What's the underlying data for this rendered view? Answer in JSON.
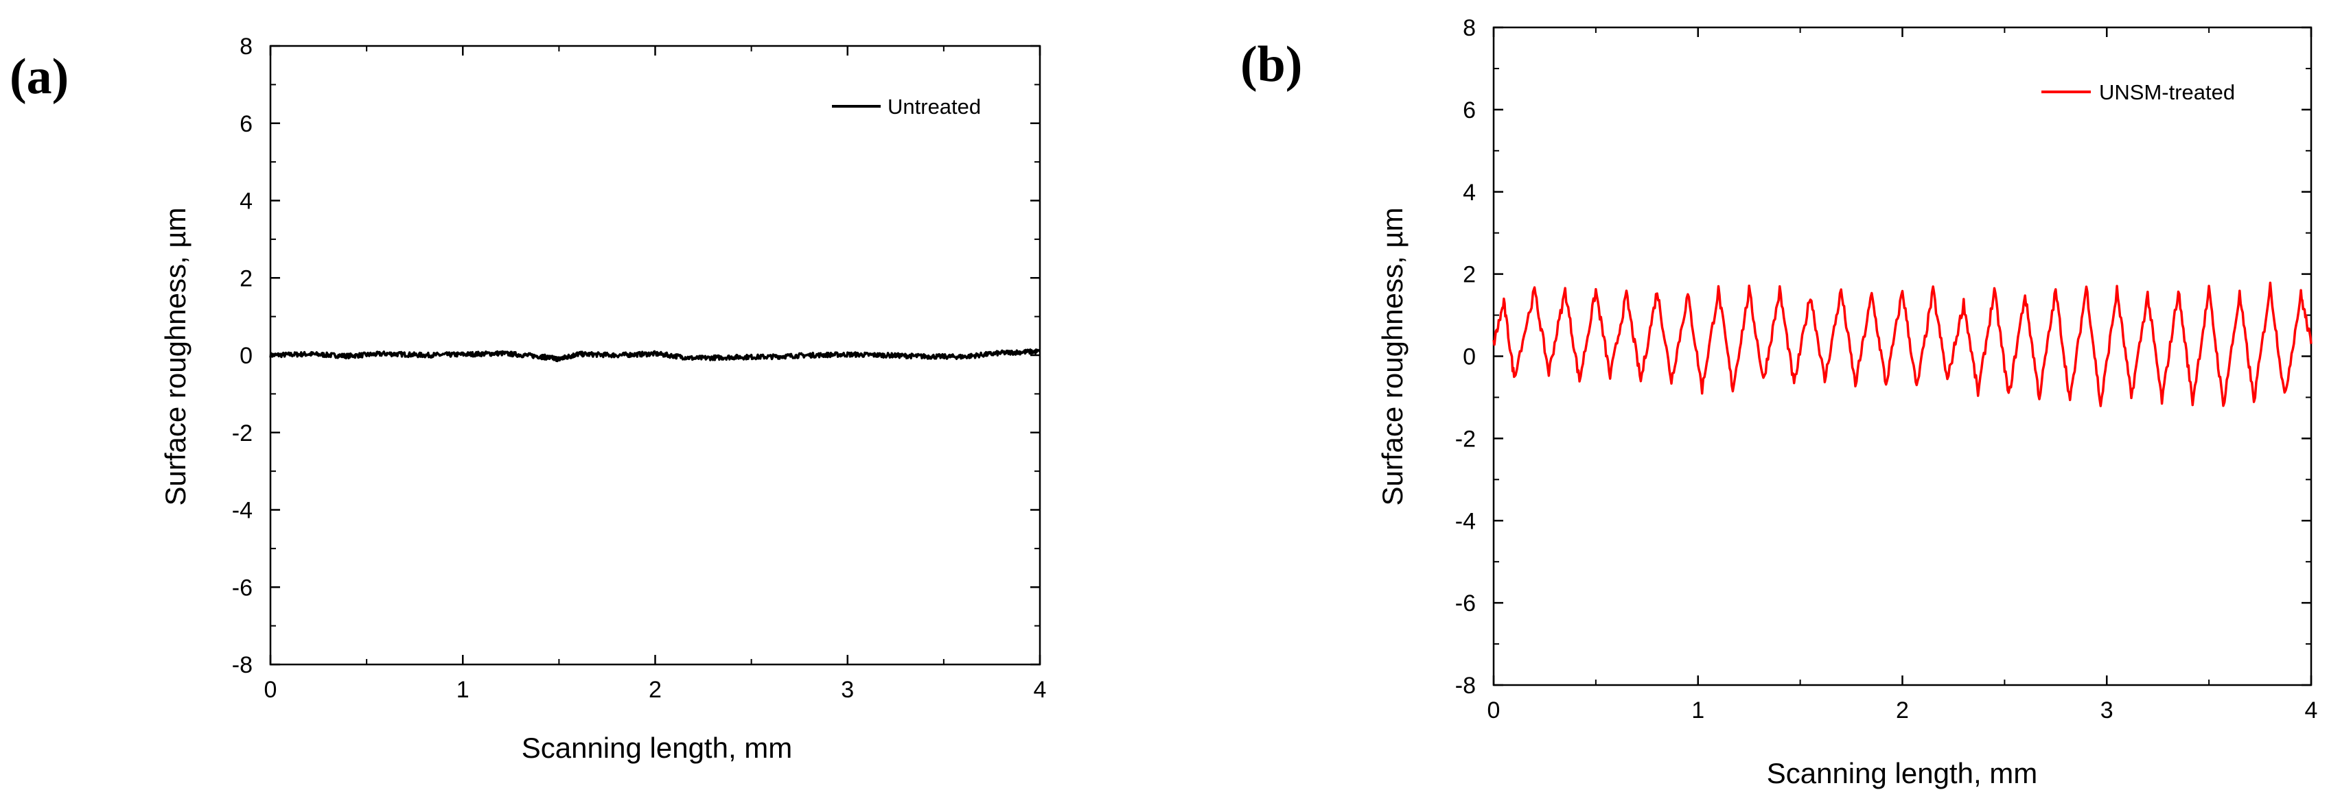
{
  "chart_data": [
    {
      "panel": "(a)",
      "type": "line",
      "xlabel": "Scanning length, mm",
      "ylabel": "Surface roughness, µm",
      "xlim": [
        0,
        4
      ],
      "ylim": [
        -8,
        8
      ],
      "xticks": [
        0,
        1,
        2,
        3,
        4
      ],
      "yticks": [
        -8,
        -6,
        -4,
        -2,
        0,
        2,
        4,
        6,
        8
      ],
      "legend": "top-right",
      "grid": false,
      "series": [
        {
          "name": "Untreated",
          "color": "#000000",
          "x": [
            0,
            0.2,
            0.4,
            0.6,
            0.8,
            1.0,
            1.2,
            1.4,
            1.5,
            1.6,
            1.8,
            2.0,
            2.2,
            2.4,
            2.6,
            2.8,
            3.0,
            3.2,
            3.4,
            3.6,
            3.8,
            4.0
          ],
          "y": [
            0.0,
            0.03,
            -0.02,
            0.04,
            0.0,
            0.02,
            0.05,
            -0.03,
            -0.1,
            0.03,
            0.0,
            0.04,
            -0.08,
            -0.05,
            -0.04,
            0.0,
            0.02,
            0.0,
            -0.03,
            -0.04,
            0.06,
            0.1
          ]
        }
      ]
    },
    {
      "panel": "(b)",
      "type": "line",
      "xlabel": "Scanning length, mm",
      "ylabel": "Surface roughness, µm",
      "xlim": [
        0,
        4
      ],
      "ylim": [
        -8,
        8
      ],
      "xticks": [
        0,
        1,
        2,
        3,
        4
      ],
      "yticks": [
        -8,
        -6,
        -4,
        -2,
        0,
        2,
        4,
        6,
        8
      ],
      "legend": "top-right",
      "grid": false,
      "series": [
        {
          "name": "UNSM-treated",
          "color": "#ff0000",
          "peak_x": [
            0.05,
            0.2,
            0.35,
            0.5,
            0.65,
            0.8,
            0.95,
            1.1,
            1.25,
            1.4,
            1.55,
            1.7,
            1.85,
            2.0,
            2.15,
            2.3,
            2.45,
            2.6,
            2.75,
            2.9,
            3.05,
            3.2,
            3.35,
            3.5,
            3.65,
            3.8,
            3.95
          ],
          "peak_y": [
            1.3,
            1.6,
            1.6,
            1.6,
            1.5,
            1.6,
            1.5,
            1.6,
            1.6,
            1.6,
            1.5,
            1.6,
            1.5,
            1.6,
            1.6,
            1.3,
            1.6,
            1.5,
            1.6,
            1.7,
            1.6,
            1.5,
            1.6,
            1.6,
            1.5,
            1.7,
            1.5
          ],
          "valley_x": [
            0.1,
            0.27,
            0.42,
            0.57,
            0.72,
            0.87,
            1.02,
            1.17,
            1.32,
            1.47,
            1.62,
            1.77,
            1.92,
            2.07,
            2.22,
            2.37,
            2.52,
            2.67,
            2.82,
            2.97,
            3.12,
            3.27,
            3.42,
            3.57,
            3.72,
            3.87
          ],
          "valley_y": [
            -0.5,
            -0.4,
            -0.6,
            -0.5,
            -0.6,
            -0.6,
            -0.8,
            -0.8,
            -0.6,
            -0.7,
            -0.6,
            -0.7,
            -0.7,
            -0.8,
            -0.6,
            -0.9,
            -1.0,
            -1.0,
            -1.1,
            -1.2,
            -1.0,
            -1.1,
            -1.1,
            -1.2,
            -1.1,
            -1.0
          ]
        }
      ]
    }
  ]
}
